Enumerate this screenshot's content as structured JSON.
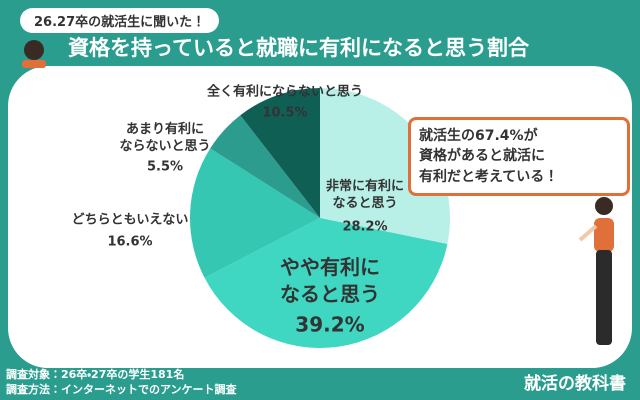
{
  "chart_data": {
    "type": "pie",
    "subtitle": "26.27卒の就活生に聞いた！",
    "title": "資格を持っていると就職に有利になると思う割合",
    "categories": [
      "非常に有利に\nなると思う",
      "やや有利に\nなると思う",
      "どちらともいえない",
      "あまり有利に\nならないと思う",
      "全く有利にならないと思う"
    ],
    "values": [
      28.2,
      39.2,
      16.6,
      5.5,
      10.5
    ],
    "value_labels": [
      "28.2%",
      "39.2%",
      "16.6%",
      "5.5%",
      "10.5%"
    ],
    "colors": [
      "#b8f0e8",
      "#3fd7c1",
      "#35c7b2",
      "#2b9c8e",
      "#0f5f55"
    ],
    "annotation": "就活生の67.4%が\n資格があると就活に\n有利だと考えている！",
    "notes": [
      "調査対象：26卒・27卒の学生181名",
      "調査方法：インターネットでのアンケート調査"
    ],
    "brand": "就活の教科書"
  }
}
